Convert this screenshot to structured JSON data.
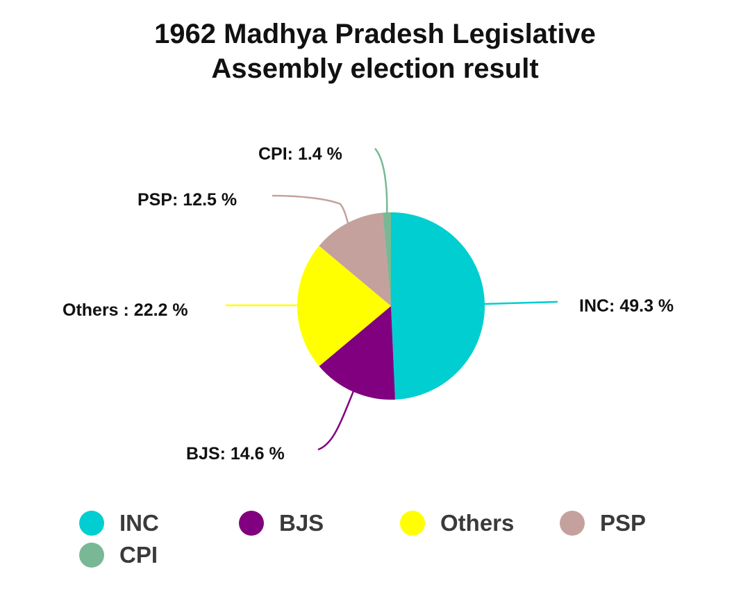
{
  "chart_data": {
    "type": "pie",
    "title_line1": "1962 Madhya Pradesh Legislative",
    "title_line2": "Assembly election result",
    "slices": [
      {
        "name": "INC",
        "value": 49.3,
        "label": "INC: 49.3 %",
        "color": "#00CED1"
      },
      {
        "name": "BJS",
        "value": 14.6,
        "label": "BJS: 14.6 %",
        "color": "#800080"
      },
      {
        "name": "Others",
        "value": 22.2,
        "label": "Others : 22.2 %",
        "color": "#FFFF00"
      },
      {
        "name": "PSP",
        "value": 12.5,
        "label": "PSP: 12.5 %",
        "color": "#C4A19C"
      },
      {
        "name": "CPI",
        "value": 1.4,
        "label": "CPI: 1.4 %",
        "color": "#79B894"
      }
    ],
    "legend": {
      "placement": "bottom",
      "items": [
        {
          "label": "INC",
          "color": "#00CED1"
        },
        {
          "label": "BJS",
          "color": "#800080"
        },
        {
          "label": "Others",
          "color": "#FFFF00"
        },
        {
          "label": "PSP",
          "color": "#C4A19C"
        },
        {
          "label": "CPI",
          "color": "#79B894"
        }
      ]
    }
  }
}
